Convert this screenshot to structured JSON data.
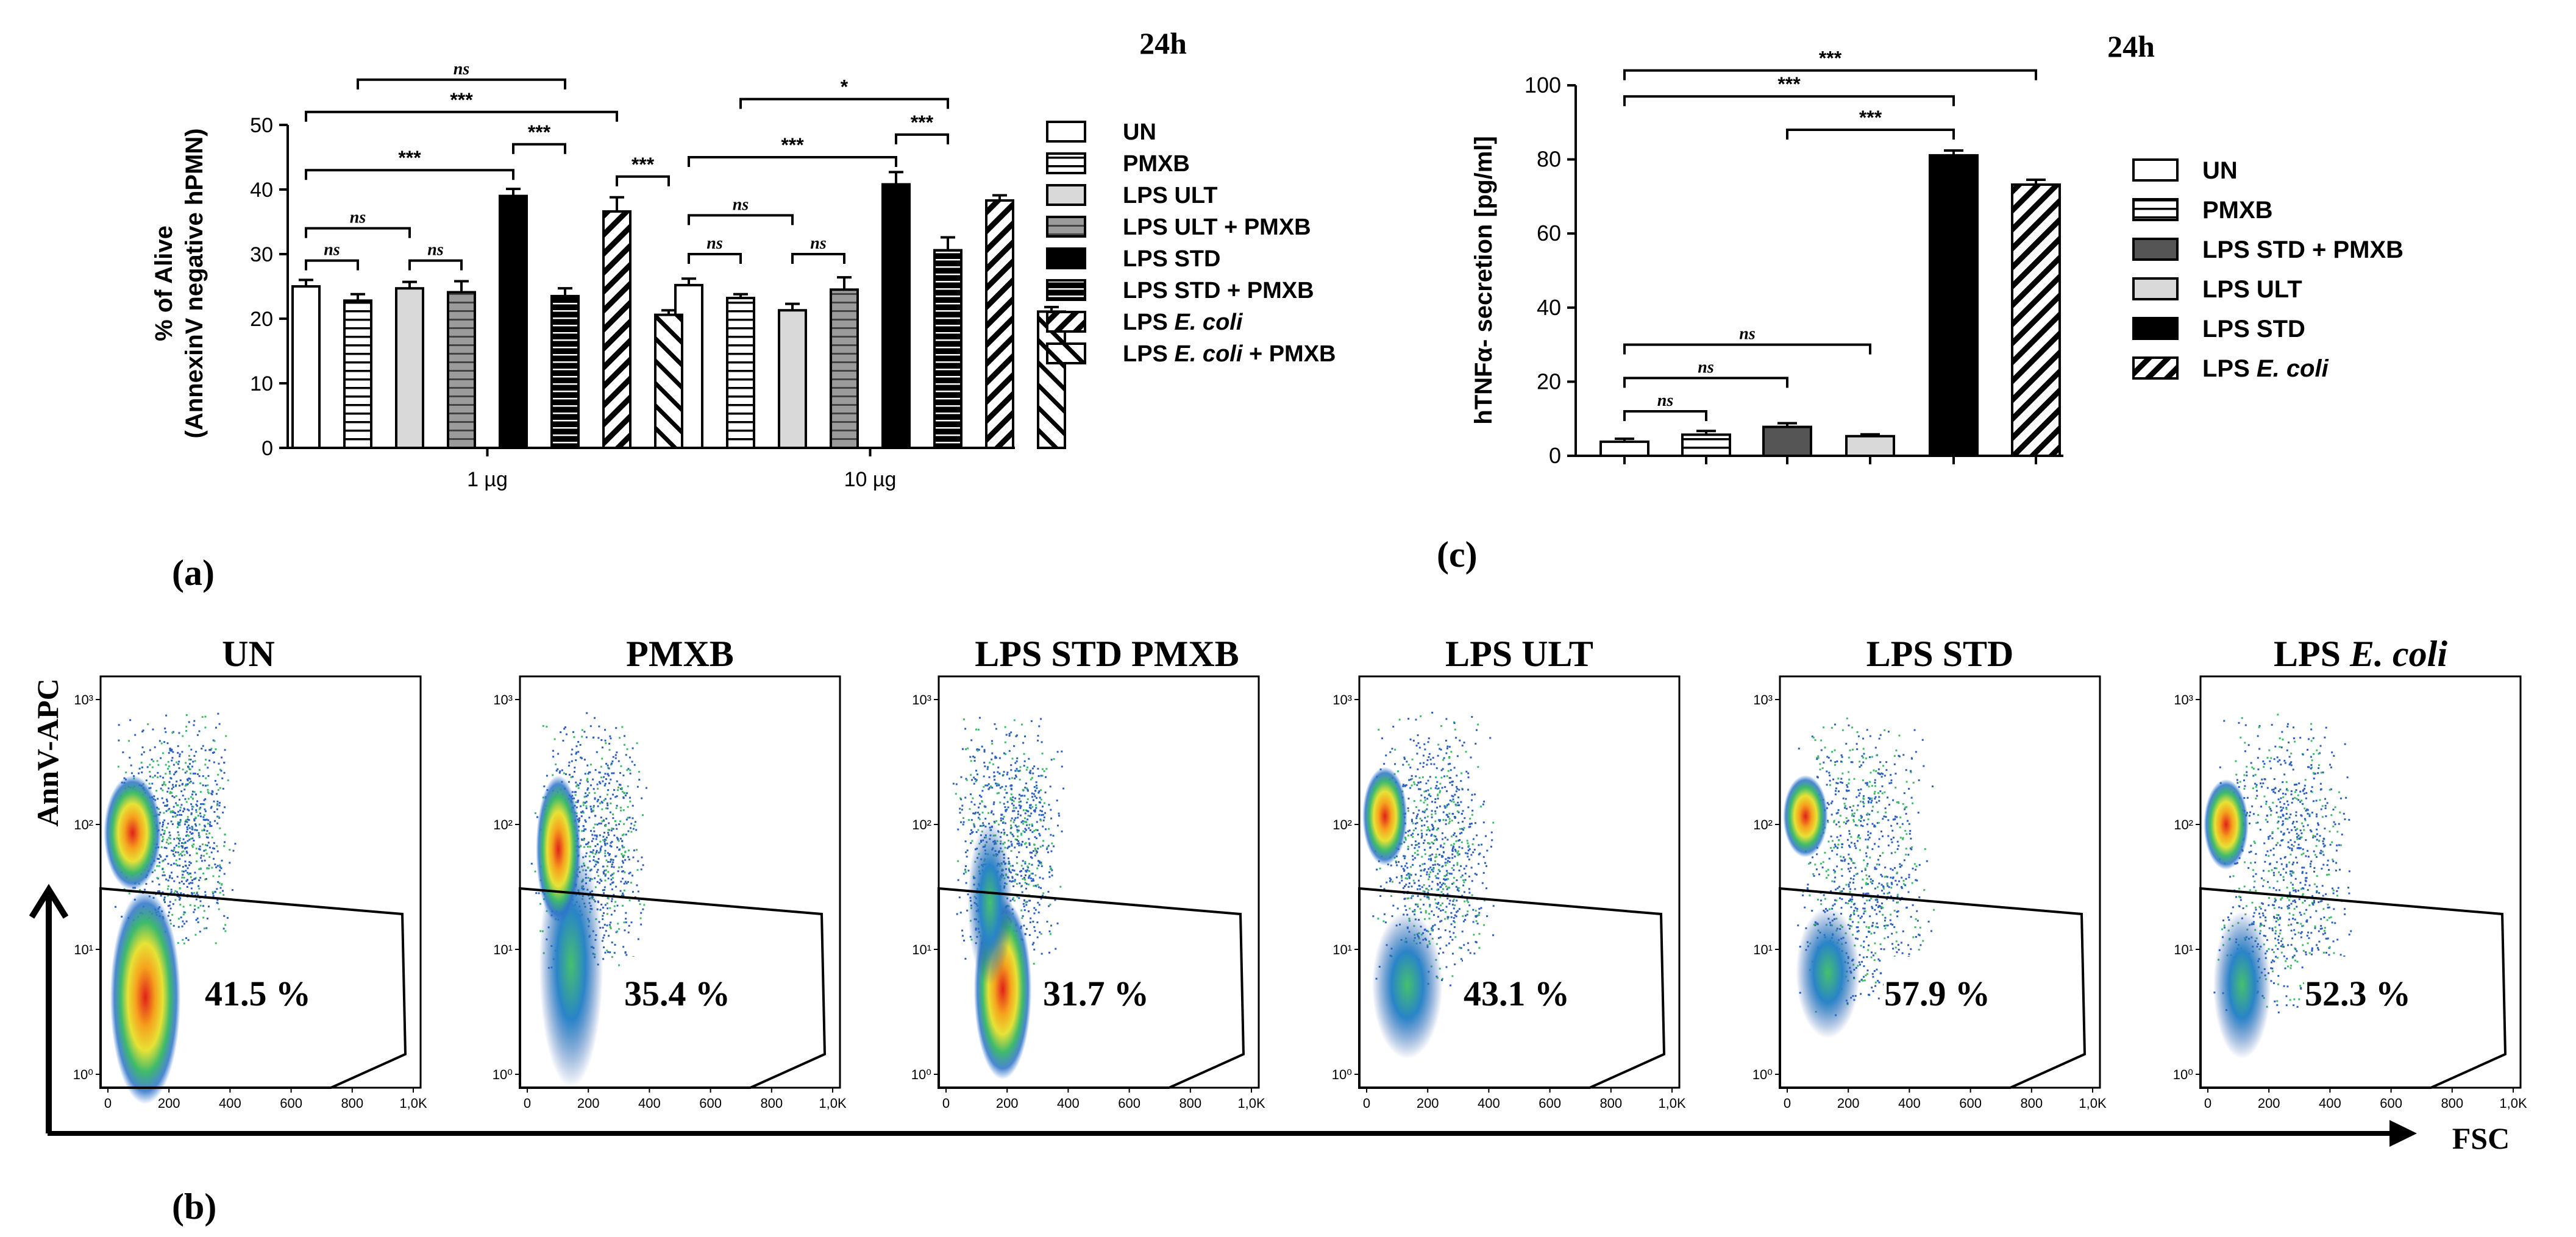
{
  "panel_labels": {
    "a": "(a)",
    "b": "(b)",
    "c": "(c)"
  },
  "colors": {
    "black": "#000000",
    "light_gray": "#d9d9d9",
    "mid_gray": "#9b9b9b",
    "dark_gray": "#555555"
  },
  "chart_data": [
    {
      "id": "panel-a",
      "type": "bar",
      "title": "24h",
      "ylabel": "% of Alive",
      "ylabel_line2": "(AnnexinV negative hPMN)",
      "ylim": [
        0,
        50
      ],
      "yticks": [
        0,
        10,
        20,
        30,
        40,
        50
      ],
      "groups": [
        "1 µg",
        "10 µg"
      ],
      "series": [
        {
          "name": "UN",
          "name_parts": [
            "UN"
          ],
          "fill": "white",
          "values": [
            25,
            25.2
          ],
          "errors": [
            1.0,
            1.0
          ]
        },
        {
          "name": "PMXB",
          "name_parts": [
            "PMXB"
          ],
          "fill": "hlines",
          "values": [
            22.8,
            23.2
          ],
          "errors": [
            1.0,
            0.6
          ]
        },
        {
          "name": "LPS ULT",
          "name_parts": [
            "LPS ULT"
          ],
          "fill": "light",
          "values": [
            24.7,
            21.3
          ],
          "errors": [
            1.0,
            1.0
          ]
        },
        {
          "name": "LPS ULT + PMXB",
          "name_parts": [
            "LPS ULT + PMXB"
          ],
          "fill": "mid-hlines",
          "values": [
            24.1,
            24.5
          ],
          "errors": [
            1.7,
            1.9
          ]
        },
        {
          "name": "LPS STD",
          "name_parts": [
            "LPS STD"
          ],
          "fill": "black",
          "values": [
            39,
            40.8
          ],
          "errors": [
            1.1,
            1.9
          ]
        },
        {
          "name": "LPS STD + PMXB",
          "name_parts": [
            "LPS STD + PMXB"
          ],
          "fill": "black-hlines",
          "values": [
            23.5,
            30.6
          ],
          "errors": [
            1.2,
            2.0
          ]
        },
        {
          "name": "LPS E. coli",
          "name_parts": [
            "LPS ",
            "E. coli",
            ""
          ],
          "fill": "diag",
          "values": [
            36.6,
            38.3
          ],
          "errors": [
            2.2,
            0.8
          ]
        },
        {
          "name": "LPS E. coli + PMXB",
          "name_parts": [
            "LPS ",
            "E. coli",
            " + PMXB"
          ],
          "fill": "diag-sparse",
          "values": [
            20.6,
            21.1
          ],
          "errors": [
            0.7,
            0.7
          ]
        }
      ],
      "significance": [
        {
          "label": "ns",
          "group": 0,
          "from": 0,
          "to": 1,
          "y": 29
        },
        {
          "label": "ns",
          "group": 0,
          "from": 0,
          "to": 2,
          "y": 34
        },
        {
          "label": "ns",
          "group": 0,
          "from": 2,
          "to": 3,
          "y": 29
        },
        {
          "label": "***",
          "group": 0,
          "from": 0,
          "to": 4,
          "y": 43
        },
        {
          "label": "***",
          "group": 0,
          "from": 4,
          "to": 5,
          "y": 47
        },
        {
          "label": "***",
          "group": 0,
          "from": 0,
          "to": 6,
          "y": 52
        },
        {
          "label": "ns",
          "group": 0,
          "from": 1,
          "to": 5,
          "y": 57
        },
        {
          "label": "***",
          "group": 0,
          "from": 6,
          "to": 7,
          "y": 42
        },
        {
          "label": "ns",
          "group": 1,
          "from": 0,
          "to": 1,
          "y": 30
        },
        {
          "label": "ns",
          "group": 1,
          "from": 0,
          "to": 2,
          "y": 36
        },
        {
          "label": "ns",
          "group": 1,
          "from": 2,
          "to": 3,
          "y": 30
        },
        {
          "label": "***",
          "group": 1,
          "from": 0,
          "to": 4,
          "y": 45
        },
        {
          "label": "***",
          "group": 1,
          "from": 4,
          "to": 5,
          "y": 48.5
        },
        {
          "label": "*",
          "group": 1,
          "from": 1,
          "to": 5,
          "y": 54
        }
      ]
    },
    {
      "id": "panel-c",
      "type": "bar",
      "title": "24h",
      "ylabel": "hTNFα- secretion [pg/ml]",
      "ylim": [
        0,
        100
      ],
      "yticks": [
        0,
        20,
        40,
        60,
        80,
        100
      ],
      "series": [
        {
          "name": "UN",
          "name_parts": [
            "UN"
          ],
          "fill": "white",
          "value": 3.8,
          "error": 0.8
        },
        {
          "name": "PMXB",
          "name_parts": [
            "PMXB"
          ],
          "fill": "hlines",
          "value": 5.7,
          "error": 1.0
        },
        {
          "name": "LPS STD + PMXB",
          "name_parts": [
            "LPS STD + PMXB"
          ],
          "fill": "dark",
          "value": 7.8,
          "error": 1.0
        },
        {
          "name": "LPS ULT",
          "name_parts": [
            "LPS ULT"
          ],
          "fill": "light",
          "value": 5.3,
          "error": 0.5
        },
        {
          "name": "LPS STD",
          "name_parts": [
            "LPS STD"
          ],
          "fill": "black",
          "value": 81.1,
          "error": 1.3
        },
        {
          "name": "LPS E. coli",
          "name_parts": [
            "LPS ",
            "E. coli",
            ""
          ],
          "fill": "diag",
          "value": 73.2,
          "error": 1.3
        }
      ],
      "significance": [
        {
          "label": "ns",
          "from": 0,
          "to": 1,
          "y": 12
        },
        {
          "label": "ns",
          "from": 0,
          "to": 2,
          "y": 21
        },
        {
          "label": "ns",
          "from": 0,
          "to": 3,
          "y": 30
        },
        {
          "label": "***",
          "from": 2,
          "to": 4,
          "y": 88
        },
        {
          "label": "***",
          "from": 0,
          "to": 4,
          "y": 97
        },
        {
          "label": "***",
          "from": 0,
          "to": 5,
          "y": 104
        }
      ]
    },
    {
      "id": "panel-b",
      "type": "scatter",
      "subtype": "flow-cytometry-density",
      "ylabel": "AnnV-APC",
      "xlabel": "FSC",
      "x_ticks": [
        "0",
        "200",
        "400",
        "600",
        "800",
        "1,0K"
      ],
      "y_ticks": [
        "10⁰",
        "10¹",
        "10²",
        "10³"
      ],
      "plots": [
        {
          "title_parts": [
            "UN"
          ],
          "gate_percent": "41.5 %"
        },
        {
          "title_parts": [
            "PMXB"
          ],
          "gate_percent": "35.4 %"
        },
        {
          "title_parts": [
            "LPS STD  PMXB"
          ],
          "gate_percent": "31.7 %"
        },
        {
          "title_parts": [
            "LPS ULT"
          ],
          "gate_percent": "43.1 %"
        },
        {
          "title_parts": [
            "LPS STD"
          ],
          "gate_percent": "57.9 %"
        },
        {
          "title_parts": [
            "LPS ",
            "E. coli"
          ],
          "gate_percent": "52.3 %"
        }
      ]
    }
  ]
}
